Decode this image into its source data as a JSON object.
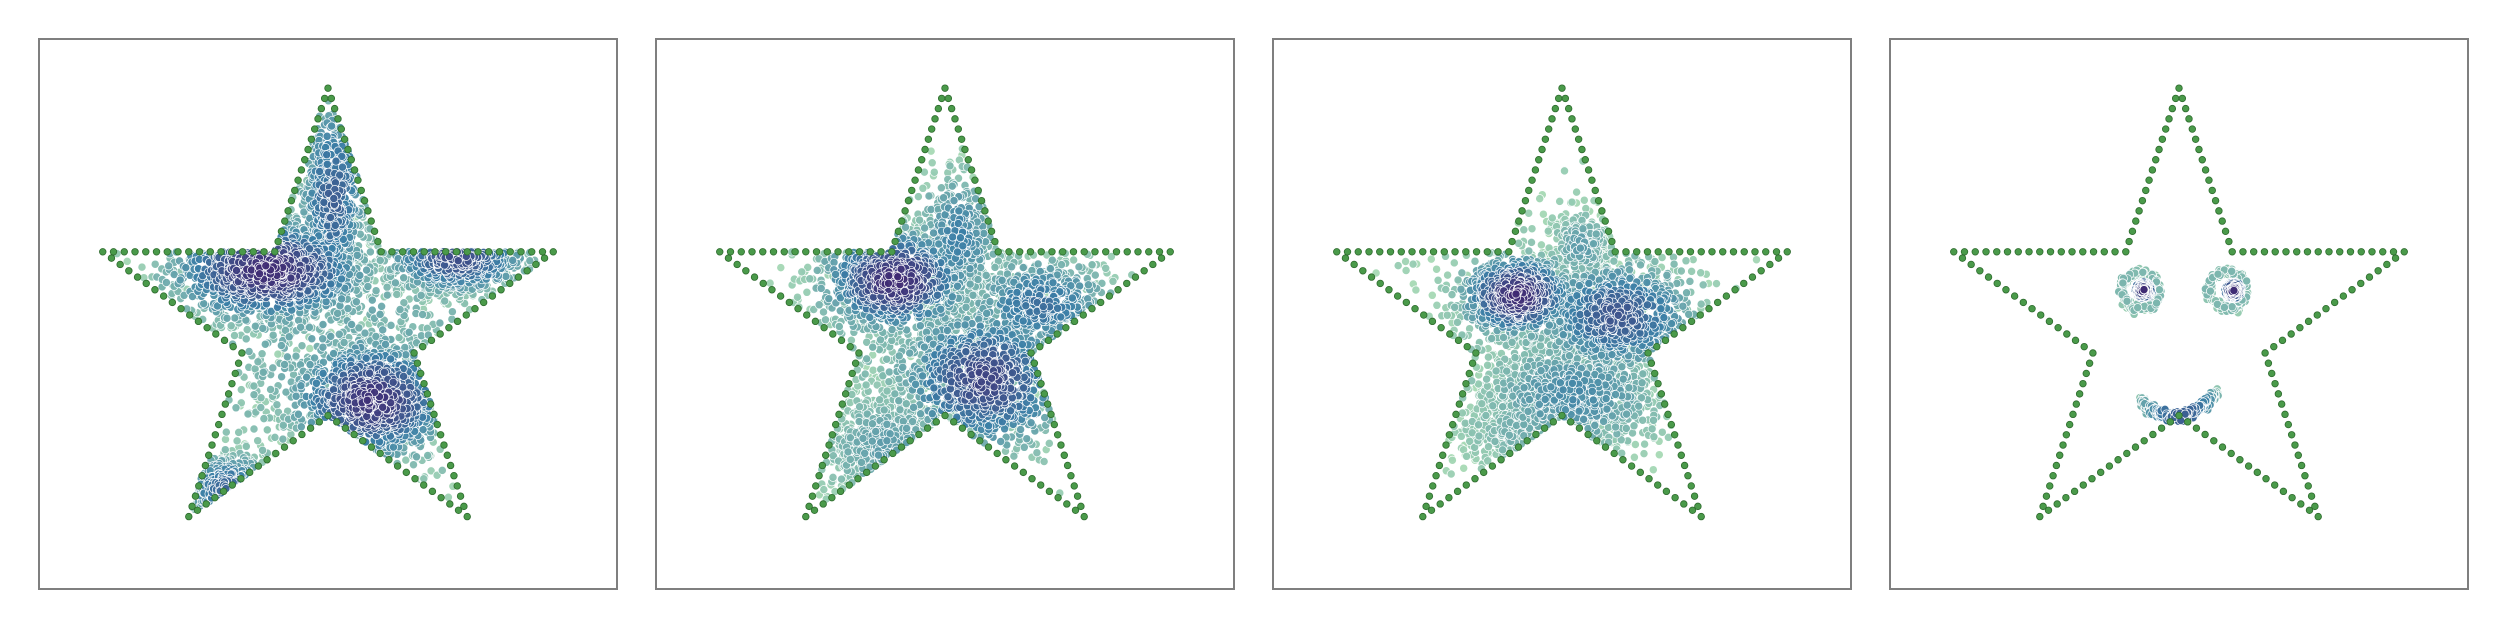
{
  "chart_data": [
    {
      "type": "scatter",
      "panel": 1,
      "title": "",
      "xlabel": "",
      "ylabel": "",
      "ticks": "none",
      "grid": false,
      "xlim": [
        -1,
        1
      ],
      "ylim": [
        -1,
        1
      ],
      "frame_color": "#7f7f7f",
      "boundary": {
        "shape": "star",
        "outer_radius": 0.955,
        "inner_radius": 0.365,
        "rotation_deg": 90,
        "color": "#4a9a4a",
        "marker_count": 160
      },
      "colormap": "viridis_crest",
      "colors": {
        "low": "#a6d9b4",
        "mid": "#3b7fa6",
        "high": "#3f2a73"
      },
      "clusters": [
        {
          "cx": -0.24,
          "cy": 0.22,
          "sx": 0.19,
          "sy": 0.1,
          "n": 1200,
          "density": 0.95
        },
        {
          "cx": 0.18,
          "cy": -0.3,
          "sx": 0.16,
          "sy": 0.12,
          "n": 1000,
          "density": 0.9
        },
        {
          "cx": 0.52,
          "cy": 0.27,
          "sx": 0.14,
          "sy": 0.07,
          "n": 650,
          "density": 0.75
        },
        {
          "cx": 0.02,
          "cy": 0.52,
          "sx": 0.07,
          "sy": 0.2,
          "n": 550,
          "density": 0.65
        },
        {
          "cx": -0.4,
          "cy": -0.66,
          "sx": 0.1,
          "sy": 0.07,
          "n": 350,
          "density": 0.6
        },
        {
          "cx": 0.05,
          "cy": -0.05,
          "sx": 0.38,
          "sy": 0.38,
          "n": 600,
          "density": 0.25
        }
      ]
    },
    {
      "type": "scatter",
      "panel": 2,
      "title": "",
      "xlabel": "",
      "ylabel": "",
      "ticks": "none",
      "grid": false,
      "xlim": [
        -1,
        1
      ],
      "ylim": [
        -1,
        1
      ],
      "frame_color": "#7f7f7f",
      "boundary": {
        "shape": "star",
        "outer_radius": 0.955,
        "inner_radius": 0.365,
        "rotation_deg": 90,
        "color": "#4a9a4a",
        "marker_count": 160
      },
      "colormap": "viridis_crest",
      "colors": {
        "low": "#a6d9b4",
        "mid": "#3b7fa6",
        "high": "#3f2a73"
      },
      "clusters": [
        {
          "cx": -0.2,
          "cy": 0.18,
          "sx": 0.14,
          "sy": 0.1,
          "n": 900,
          "density": 0.95
        },
        {
          "cx": 0.16,
          "cy": -0.22,
          "sx": 0.17,
          "sy": 0.14,
          "n": 900,
          "density": 0.8
        },
        {
          "cx": 0.38,
          "cy": 0.08,
          "sx": 0.15,
          "sy": 0.1,
          "n": 550,
          "density": 0.55
        },
        {
          "cx": 0.05,
          "cy": 0.35,
          "sx": 0.09,
          "sy": 0.14,
          "n": 400,
          "density": 0.45
        },
        {
          "cx": -0.22,
          "cy": -0.5,
          "sx": 0.14,
          "sy": 0.12,
          "n": 500,
          "density": 0.3
        },
        {
          "cx": 0.0,
          "cy": -0.05,
          "sx": 0.35,
          "sy": 0.32,
          "n": 700,
          "density": 0.2
        }
      ]
    },
    {
      "type": "scatter",
      "panel": 3,
      "title": "",
      "xlabel": "",
      "ylabel": "",
      "ticks": "none",
      "grid": false,
      "xlim": [
        -1,
        1
      ],
      "ylim": [
        -1,
        1
      ],
      "frame_color": "#7f7f7f",
      "boundary": {
        "shape": "star",
        "outer_radius": 0.955,
        "inner_radius": 0.365,
        "rotation_deg": 90,
        "color": "#4a9a4a",
        "marker_count": 160
      },
      "colormap": "viridis_crest",
      "colors": {
        "low": "#a6d9b4",
        "mid": "#3b7fa6",
        "high": "#3f2a73"
      },
      "clusters": [
        {
          "cx": -0.18,
          "cy": 0.12,
          "sx": 0.11,
          "sy": 0.08,
          "n": 800,
          "density": 0.95
        },
        {
          "cx": 0.22,
          "cy": 0.04,
          "sx": 0.16,
          "sy": 0.11,
          "n": 800,
          "density": 0.7
        },
        {
          "cx": 0.05,
          "cy": -0.28,
          "sx": 0.18,
          "sy": 0.12,
          "n": 800,
          "density": 0.4
        },
        {
          "cx": -0.15,
          "cy": -0.42,
          "sx": 0.13,
          "sy": 0.1,
          "n": 450,
          "density": 0.2
        },
        {
          "cx": 0.08,
          "cy": 0.32,
          "sx": 0.06,
          "sy": 0.07,
          "n": 250,
          "density": 0.3
        },
        {
          "cx": 0.0,
          "cy": -0.05,
          "sx": 0.3,
          "sy": 0.28,
          "n": 600,
          "density": 0.15
        }
      ]
    },
    {
      "type": "scatter",
      "panel": 4,
      "title": "",
      "xlabel": "",
      "ylabel": "",
      "ticks": "none",
      "grid": false,
      "xlim": [
        -1,
        1
      ],
      "ylim": [
        -1,
        1
      ],
      "frame_color": "#7f7f7f",
      "boundary": {
        "shape": "star",
        "outer_radius": 0.955,
        "inner_radius": 0.365,
        "rotation_deg": 90,
        "color": "#4a9a4a",
        "marker_count": 160
      },
      "colormap": "viridis_crest",
      "colors": {
        "low": "#a6d9b4",
        "mid": "#3b7fa6",
        "high": "#3f2a73"
      },
      "smiley": {
        "left_eye": {
          "cx": -0.155,
          "cy": 0.14,
          "r": 0.075,
          "dot_r": 0.035,
          "dot_dx": 0.012
        },
        "right_eye": {
          "cx": 0.195,
          "cy": 0.14,
          "r": 0.075,
          "dot_r": 0.035,
          "dot_dx": 0.025
        },
        "mouth": {
          "cx": 0.0,
          "cy": -0.31,
          "start_x": -0.155,
          "end_x": 0.155,
          "sag": 0.08,
          "lift_right": 0.04
        }
      }
    }
  ]
}
